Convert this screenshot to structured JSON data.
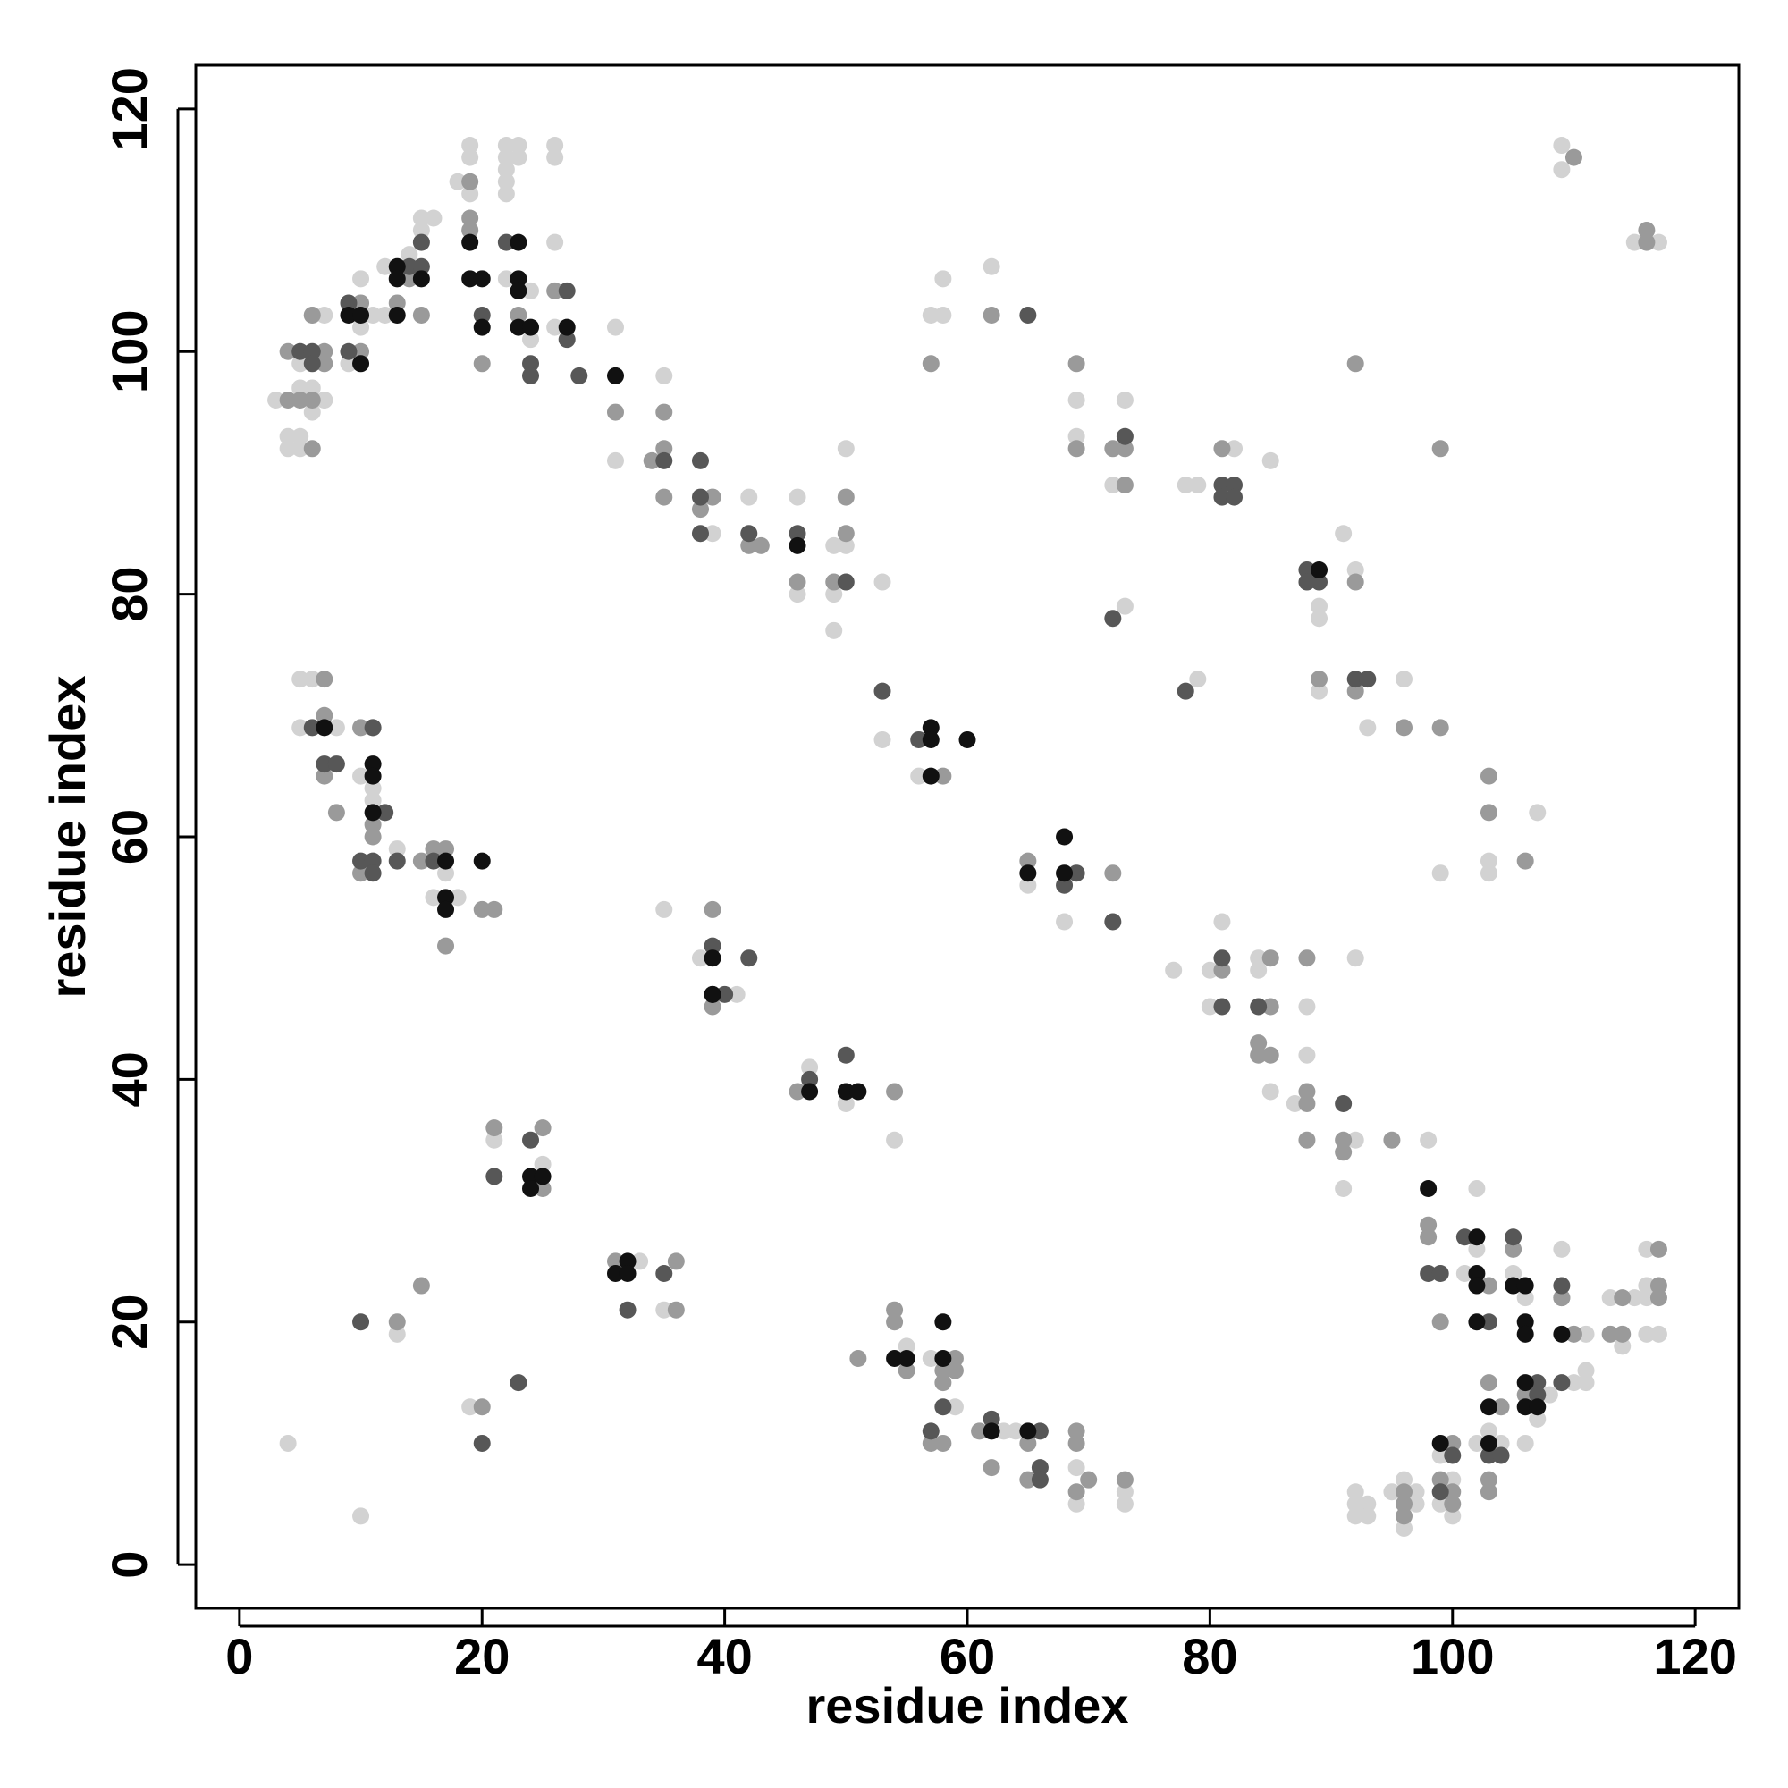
{
  "chart_data": {
    "type": "scatter",
    "x_label": "residue index",
    "y_label": "residue index",
    "xlim": [
      -3.6,
      123.6
    ],
    "ylim": [
      -3.6,
      123.6
    ],
    "xticks": [
      0,
      20,
      40,
      60,
      80,
      100,
      120
    ],
    "yticks": [
      0,
      20,
      40,
      60,
      80,
      100,
      120
    ],
    "series": [
      {
        "color": "#d2d2d2",
        "x": [
          3,
          4,
          4,
          5,
          5,
          5,
          5,
          6,
          6,
          6,
          7,
          7,
          9,
          10,
          10,
          11,
          12,
          12,
          14,
          15,
          15,
          16,
          18,
          19,
          19,
          19,
          19,
          22,
          22,
          22,
          22,
          22,
          22,
          23,
          23,
          24,
          24,
          26,
          26,
          26,
          26,
          31,
          31,
          35,
          39,
          39,
          42,
          46,
          46,
          49,
          49,
          49,
          50,
          50,
          53,
          53,
          56,
          57,
          58,
          58,
          62,
          69,
          69,
          72,
          73,
          73,
          78,
          79,
          82,
          85,
          89,
          89,
          89,
          91,
          92,
          93,
          96,
          79,
          103,
          103,
          107,
          99,
          109,
          109,
          115,
          117,
          5,
          5,
          6,
          7,
          8,
          10,
          11,
          11,
          13,
          16,
          17,
          18,
          35,
          38,
          41,
          47,
          50,
          54,
          21,
          25,
          33,
          35,
          13,
          19,
          4,
          10,
          55,
          57,
          59,
          63,
          64,
          69,
          69,
          73,
          73,
          65,
          68,
          77,
          80,
          80,
          81,
          84,
          84,
          85,
          87,
          88,
          88,
          91,
          92,
          92,
          98,
          101,
          102,
          102,
          105,
          106,
          109,
          111,
          113,
          114,
          115,
          116,
          116,
          116,
          116,
          117,
          103,
          102,
          104,
          106,
          107,
          108,
          110,
          111,
          111,
          92,
          92,
          92,
          93,
          93,
          95,
          96,
          96,
          97,
          97,
          99,
          99,
          100,
          100
        ],
        "y": [
          96,
          93,
          92,
          99,
          97,
          93,
          92,
          97,
          95,
          103,
          103,
          96,
          99,
          106,
          102,
          103,
          107,
          103,
          108,
          111,
          110,
          111,
          114,
          117,
          116,
          113,
          110,
          117,
          116,
          115,
          114,
          113,
          106,
          117,
          116,
          105,
          101,
          117,
          116,
          109,
          102,
          102,
          91,
          98,
          88,
          85,
          88,
          88,
          80,
          84,
          80,
          77,
          92,
          84,
          81,
          68,
          65,
          103,
          106,
          103,
          107,
          96,
          93,
          89,
          96,
          79,
          89,
          89,
          92,
          91,
          79,
          78,
          72,
          85,
          82,
          69,
          73,
          73,
          58,
          57,
          62,
          57,
          117,
          115,
          109,
          109,
          73,
          69,
          73,
          96,
          69,
          65,
          64,
          63,
          59,
          55,
          57,
          55,
          54,
          50,
          47,
          41,
          38,
          35,
          35,
          33,
          25,
          21,
          19,
          13,
          10,
          4,
          18,
          17,
          13,
          11,
          11,
          8,
          5,
          6,
          5,
          56,
          53,
          49,
          49,
          46,
          53,
          50,
          49,
          39,
          38,
          46,
          42,
          31,
          50,
          35,
          35,
          24,
          31,
          26,
          24,
          22,
          26,
          19,
          22,
          18,
          22,
          26,
          23,
          22,
          19,
          19,
          11,
          10,
          10,
          10,
          12,
          14,
          15,
          16,
          15,
          6,
          5,
          4,
          5,
          4,
          6,
          7,
          3,
          6,
          5,
          9,
          5,
          7,
          4
        ]
      },
      {
        "color": "#9a9a9a",
        "x": [
          4,
          4,
          5,
          6,
          6,
          6,
          7,
          7,
          10,
          10,
          13,
          14,
          15,
          19,
          19,
          19,
          20,
          23,
          26,
          31,
          34,
          35,
          35,
          35,
          38,
          39,
          42,
          43,
          46,
          49,
          50,
          50,
          57,
          58,
          62,
          69,
          69,
          72,
          73,
          73,
          81,
          89,
          92,
          92,
          92,
          96,
          99,
          99,
          103,
          103,
          106,
          109,
          110,
          116,
          116,
          7,
          7,
          7,
          8,
          10,
          10,
          11,
          11,
          11,
          15,
          16,
          17,
          17,
          20,
          21,
          39,
          39,
          46,
          54,
          21,
          25,
          25,
          31,
          36,
          36,
          13,
          15,
          20,
          51,
          54,
          54,
          55,
          57,
          58,
          58,
          58,
          59,
          59,
          61,
          62,
          65,
          65,
          69,
          69,
          69,
          70,
          73,
          65,
          72,
          81,
          84,
          84,
          85,
          85,
          85,
          88,
          88,
          88,
          88,
          91,
          91,
          95,
          98,
          98,
          99,
          103,
          105,
          109,
          110,
          113,
          114,
          114,
          117,
          117,
          117,
          103,
          103,
          103,
          104,
          106,
          96,
          96,
          96,
          99,
          100,
          100,
          100
        ],
        "y": [
          100,
          96,
          96,
          96,
          92,
          103,
          100,
          99,
          104,
          100,
          104,
          106,
          103,
          114,
          111,
          110,
          99,
          103,
          105,
          95,
          91,
          95,
          92,
          88,
          87,
          88,
          84,
          84,
          81,
          81,
          88,
          85,
          99,
          65,
          103,
          99,
          92,
          92,
          92,
          89,
          92,
          73,
          81,
          99,
          72,
          69,
          92,
          69,
          65,
          62,
          58,
          22,
          116,
          110,
          109,
          73,
          70,
          65,
          62,
          69,
          57,
          61,
          60,
          69,
          58,
          59,
          59,
          51,
          54,
          54,
          54,
          46,
          39,
          39,
          36,
          36,
          31,
          25,
          25,
          21,
          20,
          23,
          13,
          17,
          21,
          20,
          16,
          10,
          16,
          15,
          10,
          17,
          16,
          11,
          8,
          10,
          7,
          11,
          10,
          6,
          7,
          7,
          58,
          57,
          49,
          43,
          42,
          50,
          46,
          42,
          50,
          39,
          38,
          35,
          35,
          34,
          35,
          28,
          27,
          20,
          23,
          26,
          22,
          19,
          19,
          22,
          19,
          26,
          23,
          22,
          15,
          7,
          6,
          13,
          14,
          6,
          5,
          4,
          7,
          10,
          6,
          5
        ]
      },
      {
        "color": "#575757",
        "x": [
          5,
          6,
          6,
          9,
          9,
          14,
          15,
          15,
          20,
          22,
          24,
          24,
          27,
          27,
          28,
          35,
          38,
          38,
          38,
          42,
          46,
          50,
          53,
          56,
          72,
          73,
          81,
          81,
          82,
          82,
          88,
          88,
          89,
          92,
          93,
          65,
          78,
          6,
          7,
          8,
          11,
          10,
          11,
          11,
          12,
          13,
          16,
          39,
          40,
          42,
          47,
          50,
          21,
          24,
          32,
          35,
          10,
          20,
          23,
          57,
          58,
          62,
          66,
          66,
          66,
          68,
          69,
          72,
          81,
          81,
          84,
          91,
          98,
          99,
          101,
          103,
          105,
          109,
          103,
          104,
          107,
          107,
          109,
          99,
          100
        ],
        "y": [
          100,
          100,
          99,
          104,
          100,
          107,
          109,
          107,
          103,
          109,
          99,
          98,
          105,
          101,
          98,
          91,
          91,
          88,
          85,
          85,
          85,
          81,
          72,
          68,
          78,
          93,
          89,
          88,
          89,
          88,
          82,
          81,
          81,
          73,
          73,
          103,
          72,
          69,
          66,
          66,
          69,
          58,
          58,
          57,
          62,
          58,
          58,
          51,
          47,
          50,
          40,
          42,
          32,
          35,
          21,
          24,
          20,
          10,
          15,
          11,
          13,
          12,
          11,
          8,
          7,
          56,
          57,
          53,
          50,
          46,
          46,
          38,
          24,
          24,
          27,
          20,
          27,
          23,
          9,
          9,
          15,
          14,
          15,
          6,
          9
        ]
      },
      {
        "color": "#111111",
        "x": [
          9,
          10,
          10,
          13,
          13,
          13,
          15,
          19,
          19,
          20,
          20,
          23,
          23,
          23,
          23,
          24,
          27,
          31,
          46,
          57,
          57,
          57,
          60,
          89,
          7,
          11,
          11,
          11,
          17,
          17,
          17,
          20,
          39,
          39,
          39,
          47,
          50,
          51,
          24,
          24,
          25,
          31,
          32,
          32,
          54,
          55,
          58,
          58,
          62,
          65,
          65,
          68,
          68,
          98,
          102,
          102,
          102,
          102,
          105,
          106,
          106,
          106,
          109,
          103,
          103,
          106,
          106,
          107,
          99
        ],
        "y": [
          103,
          103,
          99,
          107,
          106,
          103,
          106,
          109,
          106,
          106,
          102,
          109,
          106,
          105,
          102,
          102,
          102,
          98,
          84,
          69,
          68,
          65,
          68,
          82,
          69,
          66,
          65,
          62,
          58,
          55,
          54,
          58,
          50,
          47,
          47,
          39,
          39,
          39,
          32,
          31,
          32,
          24,
          25,
          24,
          17,
          17,
          20,
          17,
          11,
          11,
          57,
          60,
          57,
          31,
          27,
          24,
          23,
          20,
          23,
          23,
          20,
          19,
          19,
          13,
          10,
          15,
          13,
          13,
          10
        ]
      }
    ]
  }
}
